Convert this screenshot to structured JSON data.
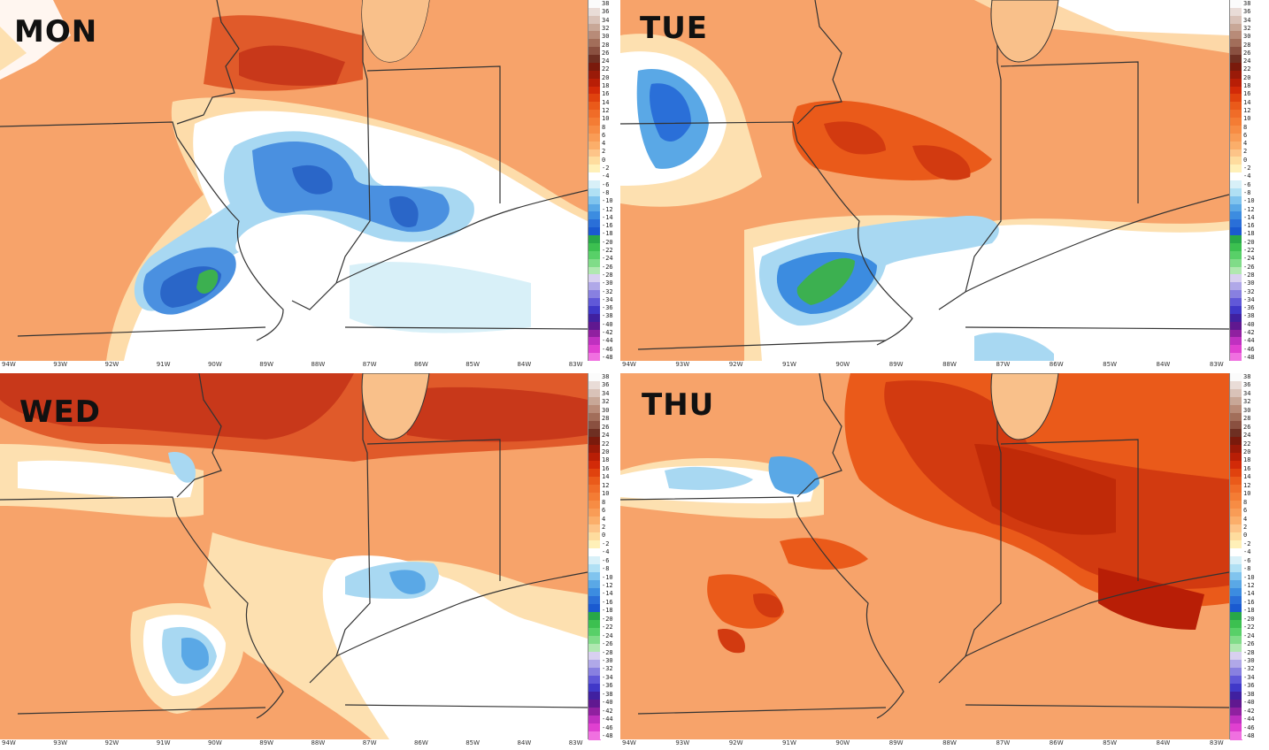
{
  "panels": [
    {
      "id": "mon",
      "label": "MON"
    },
    {
      "id": "tue",
      "label": "TUE"
    },
    {
      "id": "wed",
      "label": "WED"
    },
    {
      "id": "thu",
      "label": "THU"
    }
  ],
  "colorbar": {
    "ticks": [
      "38",
      "36",
      "34",
      "32",
      "30",
      "28",
      "26",
      "24",
      "22",
      "20",
      "18",
      "16",
      "14",
      "12",
      "10",
      "8",
      "6",
      "4",
      "2",
      "0",
      "-2",
      "-4",
      "-6",
      "-8",
      "-10",
      "-12",
      "-14",
      "-16",
      "-18",
      "-20",
      "-22",
      "-24",
      "-26",
      "-28",
      "-30",
      "-32",
      "-34",
      "-36",
      "-38",
      "-40",
      "-42",
      "-44",
      "-46",
      "-48"
    ],
    "colors": [
      "#fbfbfb",
      "#e9dcd7",
      "#d9c2b8",
      "#c8a797",
      "#b88b78",
      "#a26e5a",
      "#8a5040",
      "#6e2f22",
      "#7a1a0c",
      "#9a1a08",
      "#b81e06",
      "#d22a08",
      "#e0420e",
      "#ea5a1a",
      "#f06c28",
      "#f47c34",
      "#f78c44",
      "#f99c56",
      "#fbae6a",
      "#fdc488",
      "#fedc9e",
      "#fff0b8",
      "#ffffff",
      "#d8f0f8",
      "#b0e0f4",
      "#80c4ee",
      "#5aa8e6",
      "#3c8ce0",
      "#2a6fd8",
      "#1a5ad0",
      "#28a848",
      "#3cc050",
      "#58d068",
      "#80dc88",
      "#b0e8b0",
      "#d8d0f0",
      "#b0a8e8",
      "#8880e0",
      "#6058d8",
      "#4038c8",
      "#4020a0",
      "#601890",
      "#9020a0",
      "#c030c0",
      "#e040d0",
      "#f070e0"
    ]
  },
  "lon_labels": [
    "94W",
    "93W",
    "92W",
    "91W",
    "90W",
    "89W",
    "88W",
    "87W",
    "86W",
    "85W",
    "84W",
    "83W"
  ]
}
